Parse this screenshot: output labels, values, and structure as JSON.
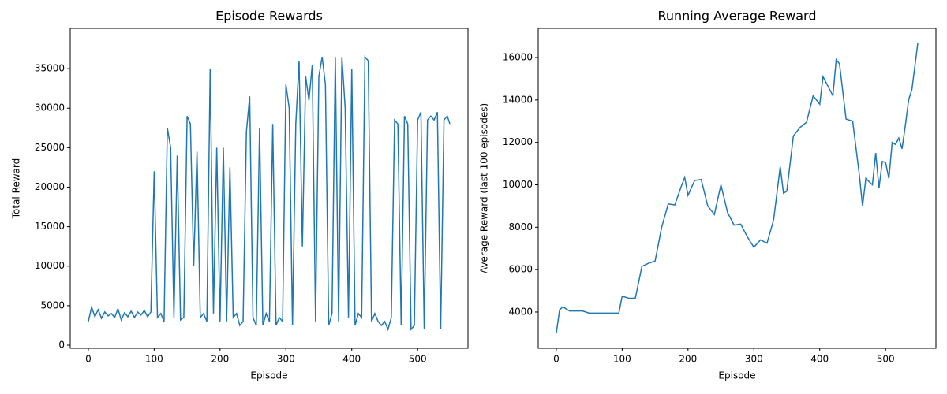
{
  "chart_data": [
    {
      "type": "line",
      "title": "Episode Rewards",
      "x_label": "Episode",
      "y_label": "Total Reward",
      "xlim": [
        -27.45,
        576.45
      ],
      "ylim": [
        -400,
        40100
      ],
      "xticks": [
        0,
        100,
        200,
        300,
        400,
        500
      ],
      "yticks": [
        0,
        5000,
        10000,
        15000,
        20000,
        25000,
        30000,
        35000
      ],
      "series": [
        {
          "name": "Episode Rewards",
          "color": "#1f77b4",
          "x": [
            0,
            5,
            10,
            15,
            20,
            25,
            30,
            35,
            40,
            45,
            50,
            55,
            60,
            65,
            70,
            75,
            80,
            85,
            90,
            95,
            100,
            105,
            110,
            115,
            120,
            125,
            130,
            135,
            140,
            145,
            150,
            155,
            160,
            165,
            170,
            175,
            180,
            185,
            190,
            195,
            200,
            205,
            210,
            215,
            220,
            225,
            230,
            235,
            240,
            245,
            250,
            255,
            260,
            265,
            270,
            275,
            280,
            285,
            290,
            295,
            300,
            305,
            310,
            315,
            320,
            325,
            330,
            335,
            340,
            345,
            350,
            355,
            360,
            365,
            370,
            375,
            380,
            385,
            390,
            395,
            400,
            405,
            410,
            415,
            420,
            425,
            430,
            435,
            440,
            445,
            450,
            455,
            460,
            465,
            470,
            475,
            480,
            485,
            490,
            495,
            500,
            505,
            510,
            515,
            520,
            525,
            530,
            535,
            540,
            545,
            549
          ],
          "values": [
            3000,
            4800,
            3600,
            4500,
            3400,
            4200,
            3700,
            4000,
            3500,
            4600,
            3200,
            4100,
            3600,
            4300,
            3500,
            4200,
            3800,
            4400,
            3600,
            4200,
            22000,
            3500,
            4000,
            3000,
            27500,
            25000,
            3500,
            24000,
            3200,
            3500,
            29000,
            28000,
            10000,
            24500,
            3500,
            4000,
            3000,
            35000,
            4000,
            25000,
            3000,
            25000,
            3000,
            22500,
            3500,
            4000,
            2500,
            3000,
            27000,
            31500,
            3500,
            2500,
            27500,
            2500,
            4000,
            3000,
            28000,
            2500,
            3500,
            3000,
            33000,
            30000,
            2500,
            28000,
            36000,
            12500,
            34000,
            31000,
            35500,
            3000,
            34000,
            36500,
            33000,
            2500,
            4000,
            36500,
            3000,
            36500,
            30000,
            3500,
            35000,
            2500,
            4000,
            3500,
            36500,
            36000,
            3000,
            4000,
            3000,
            2500,
            3000,
            2000,
            3500,
            28500,
            28000,
            2500,
            29000,
            28000,
            2000,
            2500,
            28500,
            29500,
            2000,
            28500,
            29000,
            28500,
            29500,
            2000,
            28500,
            29000,
            28000
          ]
        }
      ]
    },
    {
      "type": "line",
      "title": "Running Average Reward",
      "x_label": "Episode",
      "y_label": "Average Reward (last 100 episodes)",
      "xlim": [
        -27.45,
        576.45
      ],
      "ylim": [
        2290,
        17375
      ],
      "xticks": [
        0,
        100,
        200,
        300,
        400,
        500
      ],
      "yticks": [
        4000,
        6000,
        8000,
        10000,
        12000,
        14000,
        16000
      ],
      "series": [
        {
          "name": "Running Average Reward",
          "color": "#1f77b4",
          "x": [
            0,
            5,
            10,
            20,
            30,
            40,
            50,
            60,
            70,
            80,
            90,
            95,
            100,
            110,
            120,
            130,
            140,
            150,
            160,
            170,
            180,
            190,
            195,
            200,
            210,
            220,
            230,
            240,
            250,
            260,
            270,
            280,
            290,
            300,
            310,
            320,
            330,
            340,
            345,
            350,
            360,
            370,
            380,
            390,
            400,
            405,
            410,
            420,
            425,
            430,
            440,
            450,
            460,
            465,
            470,
            480,
            485,
            490,
            495,
            500,
            505,
            510,
            515,
            520,
            525,
            530,
            535,
            540,
            549
          ],
          "values": [
            3000,
            4100,
            4250,
            4050,
            4050,
            4050,
            3950,
            3950,
            3950,
            3950,
            3950,
            3950,
            4750,
            4650,
            4650,
            6150,
            6300,
            6400,
            8000,
            9100,
            9050,
            9950,
            10350,
            9500,
            10200,
            10250,
            9000,
            8600,
            10000,
            8700,
            8100,
            8150,
            7550,
            7050,
            7400,
            7250,
            8350,
            10850,
            9600,
            9700,
            12300,
            12700,
            12950,
            14200,
            13800,
            15100,
            14800,
            14200,
            15900,
            15700,
            13100,
            13000,
            10500,
            9000,
            10300,
            10000,
            11500,
            9850,
            11100,
            11050,
            10300,
            12000,
            11900,
            12200,
            11700,
            12800,
            14000,
            14500,
            16700
          ]
        }
      ]
    }
  ]
}
